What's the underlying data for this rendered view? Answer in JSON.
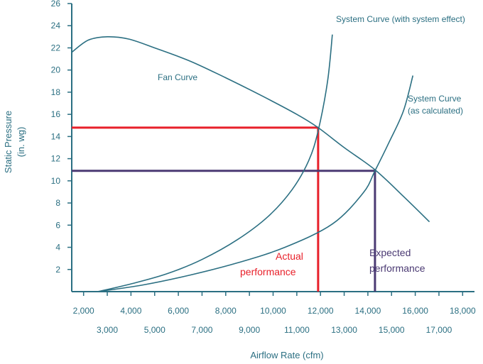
{
  "chart_data": {
    "type": "line",
    "title": "",
    "xlabel": "Airflow Rate (cfm)",
    "ylabel_line1": "Static Pressure",
    "ylabel_line2": "(in. wg)",
    "xlim": [
      1500,
      18500
    ],
    "ylim": [
      0,
      26
    ],
    "x_ticks_upper": [
      2000,
      4000,
      6000,
      8000,
      10000,
      12000,
      14000,
      16000,
      18000
    ],
    "x_ticks_upper_labels": [
      "2,000",
      "4,000",
      "6,000",
      "8,000",
      "10,000",
      "12,000",
      "14,000",
      "16,000",
      "18,000"
    ],
    "x_ticks_lower": [
      3000,
      5000,
      7000,
      9000,
      11000,
      13000,
      15000,
      17000
    ],
    "x_ticks_lower_labels": [
      "3,000",
      "5,000",
      "7,000",
      "9,000",
      "11,000",
      "13,000",
      "15,000",
      "17,000"
    ],
    "y_ticks": [
      2,
      4,
      6,
      8,
      10,
      12,
      14,
      16,
      18,
      20,
      22,
      24,
      26
    ],
    "y_ticks_labels": [
      "2",
      "4",
      "6",
      "8",
      "10",
      "12",
      "14",
      "16",
      "18",
      "20",
      "22",
      "24",
      "26"
    ],
    "grid": false,
    "colors": {
      "axis": "#2b6f82",
      "curve": "#2b6f82",
      "actual": "#e8202a",
      "expected": "#4b3a73"
    },
    "series": [
      {
        "name": "Fan Curve",
        "x": [
          1500,
          2200,
          3000,
          3900,
          5000,
          6500,
          8000,
          9500,
          11000,
          11900,
          13000,
          14300,
          15500,
          16600
        ],
        "y": [
          21.6,
          22.7,
          23.0,
          22.8,
          22.0,
          20.8,
          19.3,
          17.7,
          16.0,
          14.8,
          13.0,
          11.0,
          8.6,
          6.3
        ]
      },
      {
        "name": "System Curve (with system effect)",
        "x": [
          2600,
          4000,
          5500,
          7000,
          8500,
          9800,
          10800,
          11500,
          11900,
          12300,
          12500
        ],
        "y": [
          0,
          0.7,
          1.6,
          2.9,
          4.7,
          6.8,
          9.2,
          11.8,
          14.5,
          19.0,
          23.2
        ]
      },
      {
        "name": "System Curve (as calculated)",
        "x": [
          2600,
          4500,
          6500,
          8500,
          10500,
          12500,
          13800,
          14300,
          14900,
          15500,
          15900
        ],
        "y": [
          0,
          0.6,
          1.5,
          2.6,
          4.0,
          6.1,
          8.9,
          10.9,
          13.5,
          16.3,
          19.5
        ]
      }
    ],
    "operating_points": [
      {
        "name": "actual",
        "x": 11900,
        "y": 14.8
      },
      {
        "name": "expected",
        "x": 14300,
        "y": 10.9
      }
    ],
    "annotations": {
      "fan_curve": "Fan Curve",
      "system_effect": "System Curve (with system effect)",
      "system_calc_line1": "System Curve",
      "system_calc_line2": "(as calculated)",
      "actual_line1": "Actual",
      "actual_line2": "performance",
      "expected_line1": "Expected",
      "expected_line2": "performance"
    }
  }
}
